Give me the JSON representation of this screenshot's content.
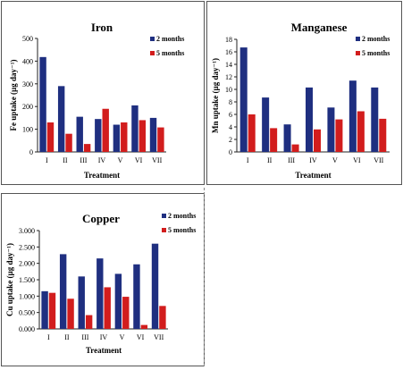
{
  "colors": {
    "two_months": "#1f2f80",
    "five_months": "#d21d1d",
    "axis": "#222222"
  },
  "chart_data": [
    {
      "id": "iron",
      "type": "bar",
      "title": "Iron",
      "ylabel": "Fe uptake (µg day⁻¹)",
      "xlabel": "Treatment",
      "categories": [
        "I",
        "II",
        "III",
        "IV",
        "V",
        "VI",
        "VII"
      ],
      "ylim": [
        0,
        500
      ],
      "ytick_labels": [
        "0",
        "100",
        "200",
        "300",
        "400",
        "500"
      ],
      "series": [
        {
          "name": "2 months",
          "values": [
            418,
            290,
            155,
            145,
            120,
            205,
            150
          ]
        },
        {
          "name": "5 months",
          "values": [
            130,
            80,
            35,
            190,
            130,
            140,
            108
          ]
        }
      ]
    },
    {
      "id": "manganese",
      "type": "bar",
      "title": "Manganese",
      "ylabel": "Mn uptake (µg day⁻¹)",
      "xlabel": "Treatment",
      "categories": [
        "I",
        "II",
        "III",
        "IV",
        "V",
        "VI",
        "VII"
      ],
      "ylim": [
        0,
        18
      ],
      "ytick_labels": [
        "0",
        "2",
        "4",
        "6",
        "8",
        "10",
        "12",
        "14",
        "16",
        "18"
      ],
      "series": [
        {
          "name": "2 months",
          "values": [
            16.7,
            8.7,
            4.4,
            10.3,
            7.1,
            11.4,
            10.3
          ]
        },
        {
          "name": "5 months",
          "values": [
            6.0,
            3.8,
            1.2,
            3.6,
            5.2,
            6.5,
            5.3
          ]
        }
      ]
    },
    {
      "id": "copper",
      "type": "bar",
      "title": "Copper",
      "ylabel": "Cu uptake (µg day⁻¹)",
      "xlabel": "Treatment",
      "categories": [
        "I",
        "II",
        "III",
        "IV",
        "V",
        "VI",
        "VII"
      ],
      "ylim": [
        0,
        3
      ],
      "ytick_labels": [
        "0.000",
        "0.500",
        "1.000",
        "1.500",
        "2.000",
        "2.500",
        "3.000"
      ],
      "series": [
        {
          "name": "2 months",
          "values": [
            1.15,
            2.28,
            1.6,
            2.15,
            1.68,
            1.97,
            2.6
          ]
        },
        {
          "name": "5 months",
          "values": [
            1.1,
            0.92,
            0.42,
            1.27,
            0.98,
            0.12,
            0.7
          ]
        }
      ]
    }
  ]
}
